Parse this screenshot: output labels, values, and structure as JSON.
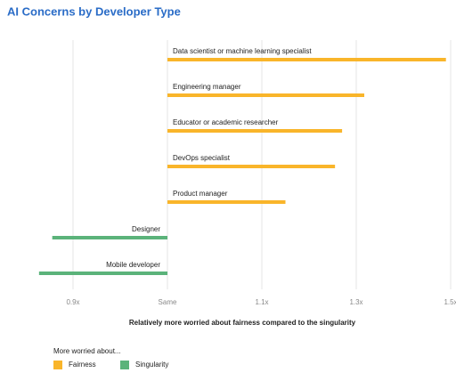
{
  "chart_data": {
    "type": "bar",
    "title": "AI Concerns by Developer Type",
    "categories": [
      "Data scientist or machine learning specialist",
      "Engineering manager",
      "Educator or academic researcher",
      "DevOps specialist",
      "Product manager",
      "Designer",
      "Mobile developer"
    ],
    "series": [
      {
        "name": "Fairness",
        "color": "#f9b52a",
        "values": [
          1.49,
          1.317,
          1.27,
          1.255,
          1.15,
          null,
          null
        ]
      },
      {
        "name": "Singularity",
        "color": "#5bb37a",
        "values": [
          null,
          null,
          null,
          null,
          null,
          0.878,
          0.864
        ]
      }
    ],
    "baseline": 1,
    "xlim": [
      0.855,
      1.508
    ],
    "xticks": [
      {
        "value": 0.9,
        "label": "0.9x"
      },
      {
        "value": 1,
        "label": "Same"
      },
      {
        "value": 1.1,
        "label": "1.1x"
      },
      {
        "value": 1.3,
        "label": "1.3x"
      },
      {
        "value": 1.5,
        "label": "1.5x"
      }
    ],
    "xlabel": "Relatively more worried about fairness compared to the singularity",
    "legend_title": "More worried about...",
    "grid": true
  }
}
